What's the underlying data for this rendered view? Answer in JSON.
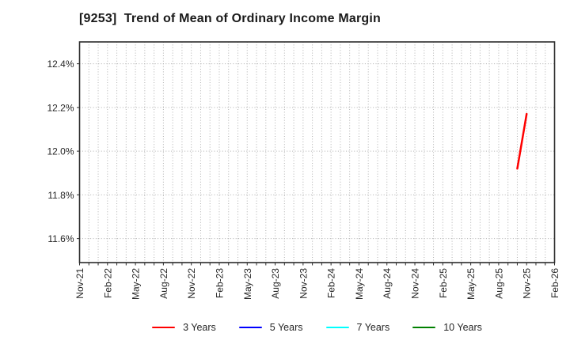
{
  "chart_data": {
    "type": "line",
    "title": "[9253]  Trend of Mean of Ordinary Income Margin",
    "x_axis": {
      "tick_labels": [
        "Nov-21",
        "Feb-22",
        "May-22",
        "Aug-22",
        "Nov-22",
        "Feb-23",
        "May-23",
        "Aug-23",
        "Nov-23",
        "Feb-24",
        "May-24",
        "Aug-24",
        "Nov-24",
        "Feb-25",
        "May-25",
        "Aug-25",
        "Nov-25",
        "Feb-26"
      ],
      "tick_interval_months": 3,
      "total_months": 51,
      "grid_interval_months": 1
    },
    "y_axis": {
      "tick_labels": [
        "11.6%",
        "11.8%",
        "12.0%",
        "12.2%",
        "12.4%"
      ],
      "tick_values": [
        11.6,
        11.8,
        12.0,
        12.2,
        12.4
      ],
      "unit": "%",
      "ylim": [
        11.49,
        12.5
      ]
    },
    "grid": {
      "style": "dotted",
      "color": "#b0b0b0",
      "vertical": "monthly",
      "horizontal": "every 0.2%"
    },
    "series": [
      {
        "name": "3 Years",
        "color": "#ff0000",
        "points": [
          {
            "month": "Oct-25",
            "month_index": 47,
            "value": 11.92
          },
          {
            "month": "Nov-25",
            "month_index": 48,
            "value": 12.17
          }
        ]
      },
      {
        "name": "5 Years",
        "color": "#0000ff",
        "points": []
      },
      {
        "name": "7 Years",
        "color": "#00ffff",
        "points": []
      },
      {
        "name": "10 Years",
        "color": "#008000",
        "points": []
      }
    ],
    "legend": {
      "position": "bottom center",
      "entries": [
        "3 Years",
        "5 Years",
        "7 Years",
        "10 Years"
      ]
    }
  },
  "colors": {
    "background": "#ffffff",
    "text": "#262626",
    "title_text": "#1a1a1a",
    "spine": "#2b2b2b",
    "grid": "#b0b0b0"
  }
}
